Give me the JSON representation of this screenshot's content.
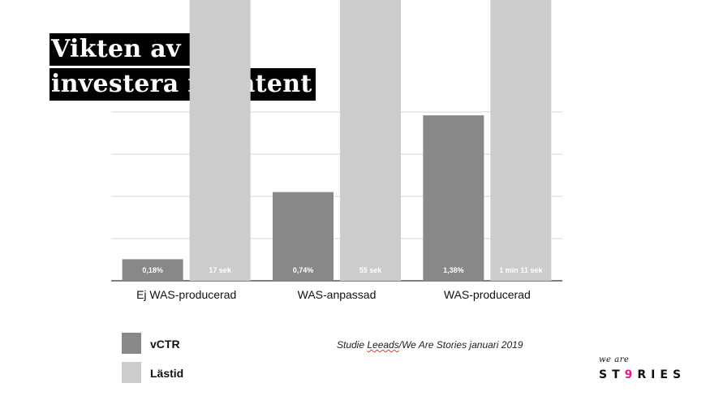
{
  "slide": {
    "title_line1": "Vikten av att",
    "title_line2": "investera i content",
    "source_prefix": "Studie ",
    "source_squiggle": "Leeads",
    "source_rest": "/We Are Stories januari 2019"
  },
  "logo": {
    "small_text": "we are",
    "big_text_pre": "ST",
    "big_text_accent": "9",
    "big_text_post": "RIES"
  },
  "legend": [
    {
      "label": "vCTR",
      "color": "#888888"
    },
    {
      "label": "Lästid",
      "color": "#cccccc"
    }
  ],
  "chart_data": {
    "type": "bar",
    "categories": [
      "Ej WAS-producerad",
      "WAS-anpassad",
      "WAS-producerad"
    ],
    "series": [
      {
        "name": "vCTR",
        "values": [
          0.18,
          0.74,
          1.38
        ],
        "labels": [
          "0,18%",
          "0,74%",
          "1,38%"
        ],
        "color": "#888888"
      },
      {
        "name": "Lästid",
        "values": [
          17,
          55,
          71
        ],
        "labels": [
          "17 sek",
          "55 sek",
          "1 min 11 sek"
        ],
        "color": "#cccccc"
      }
    ],
    "grid": true,
    "legend_position": "bottom-left"
  }
}
